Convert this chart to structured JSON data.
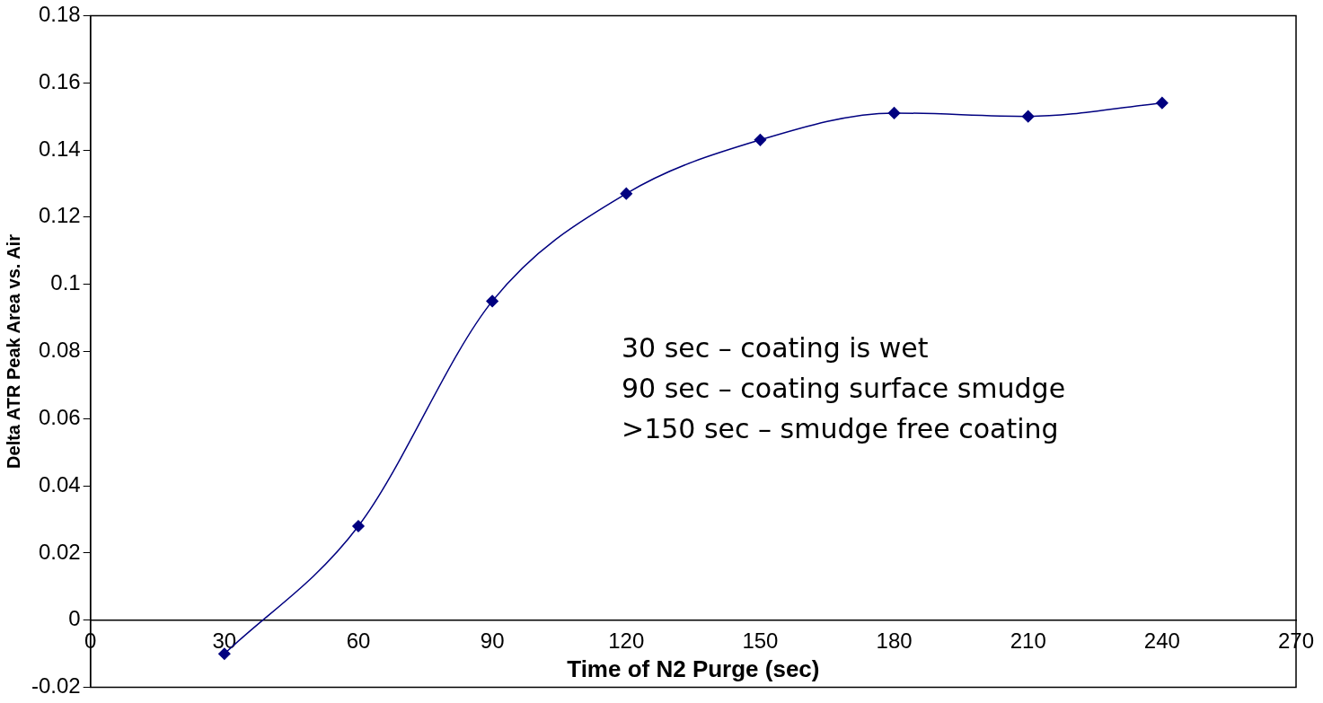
{
  "chart_data": {
    "type": "line",
    "xlabel": "Time of N2 Purge (sec)",
    "ylabel": "Delta ATR Peak Area vs. Air",
    "x": [
      30,
      60,
      90,
      120,
      150,
      180,
      210,
      240
    ],
    "series": [
      {
        "color": "#000080",
        "values": [
          -0.01,
          0.028,
          0.095,
          0.127,
          0.143,
          0.151,
          0.15,
          0.154
        ]
      }
    ],
    "xlim": [
      0,
      270
    ],
    "xticks": [
      0,
      30,
      60,
      90,
      120,
      150,
      180,
      210,
      240,
      270
    ],
    "ylim": [
      -0.02,
      0.18
    ],
    "yticks": [
      -0.02,
      0,
      0.02,
      0.04,
      0.06,
      0.08,
      0.1,
      0.12,
      0.14,
      0.16,
      0.18
    ],
    "grid": false,
    "legend": false,
    "marker": "diamond",
    "line_style": "solid",
    "annotations": [
      "30 sec – coating is wet",
      "90 sec – coating surface smudge",
      ">150 sec – smudge free coating"
    ]
  }
}
